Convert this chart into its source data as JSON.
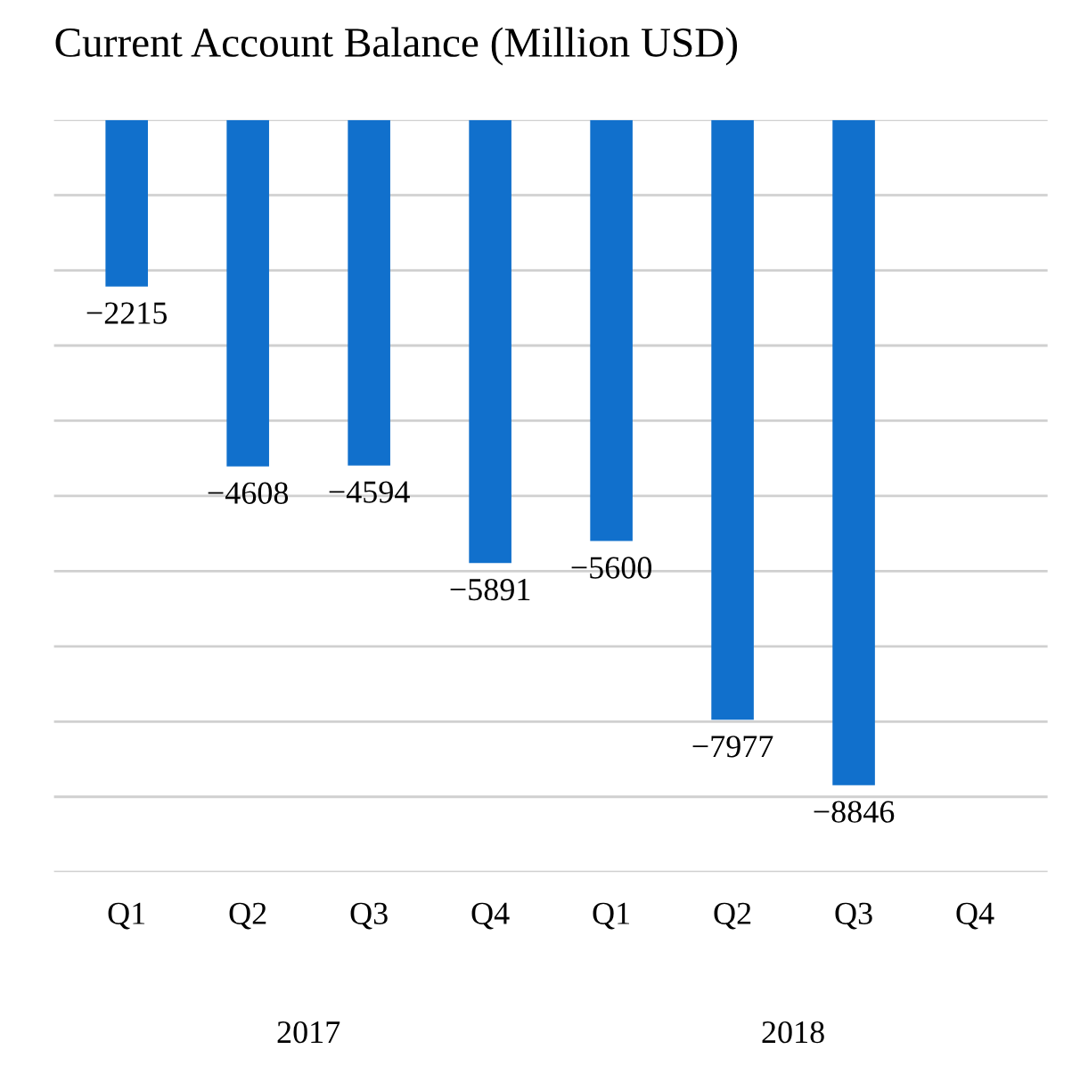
{
  "chart_data": {
    "type": "bar",
    "title": "Current Account Balance (Million USD)",
    "categories": [
      "Q1",
      "Q2",
      "Q3",
      "Q4",
      "Q1",
      "Q2",
      "Q3",
      "Q4"
    ],
    "values": [
      -2215,
      -4608,
      -4594,
      -5891,
      -5600,
      -7977,
      -8846,
      null
    ],
    "color": "#1170cc",
    "data_labels": true,
    "ylim": [
      -10000,
      0
    ],
    "yticks": [
      {
        "value": -10000,
        "label": null
      },
      {
        "value": -9000,
        "label": null
      },
      {
        "value": -8000,
        "label": null
      },
      {
        "value": -7000,
        "label": null
      },
      {
        "value": -6000,
        "label": null
      },
      {
        "value": -5000,
        "label": null
      },
      {
        "value": -4000,
        "label": null
      },
      {
        "value": -3000,
        "label": null
      },
      {
        "value": -2000,
        "label": null
      },
      {
        "value": -1000,
        "label": null
      },
      {
        "value": 0,
        "label": null
      }
    ],
    "tick_labels": "x",
    "grid": "y",
    "annotations": [
      "2017",
      "2018"
    ]
  }
}
